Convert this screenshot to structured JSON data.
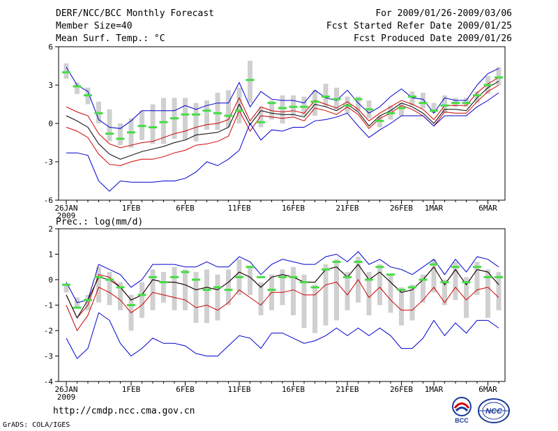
{
  "header": {
    "title": "DERF/NCC/BCC Monthly Forecast",
    "member_size": "Member Size=40",
    "variable": "Mean Surf. Temp.: °C",
    "period": "For 2009/01/26-2009/03/06",
    "started": "Fcst Started Refer Date 2009/01/25",
    "produced": "Fcst Produced Date 2009/01/26"
  },
  "footer": {
    "url": "http://cmdp.ncc.cma.gov.cn",
    "credit": "GrADS: COLA/IGES",
    "logo_bcc": "BCC",
    "logo_ncc": "NCC"
  },
  "colors": {
    "envelope": "#0000cc",
    "inner": "#cc0000",
    "mean": "#000000",
    "bar": "#d0d0d0",
    "marker": "#44dd44"
  },
  "chart_data": [
    {
      "type": "line",
      "title": "Mean Surf. Temp.: °C",
      "ylim": [
        -6,
        6
      ],
      "yticks": [
        -6,
        -3,
        0,
        3,
        6
      ],
      "x_tick_labels": [
        {
          "day": 0,
          "label": "26JAN"
        },
        {
          "day": 6,
          "label": "1FEB"
        },
        {
          "day": 11,
          "label": "6FEB"
        },
        {
          "day": 16,
          "label": "11FEB"
        },
        {
          "day": 21,
          "label": "16FEB"
        },
        {
          "day": 26,
          "label": "21FEB"
        },
        {
          "day": 31,
          "label": "26FEB"
        },
        {
          "day": 34,
          "label": "1MAR"
        },
        {
          "day": 39,
          "label": "6MAR"
        }
      ],
      "x_year": "2009",
      "series": [
        {
          "name": "max",
          "color": "#0000cc",
          "values": [
            4.4,
            3.0,
            2.5,
            0.3,
            -0.3,
            -0.4,
            0.2,
            1.0,
            1.0,
            1.0,
            1.0,
            1.4,
            1.1,
            1.4,
            1.6,
            1.6,
            3.2,
            1.3,
            2.5,
            1.9,
            1.8,
            1.8,
            1.6,
            2.6,
            2.0,
            1.8,
            2.6,
            1.6,
            0.8,
            1.3,
            2.1,
            2.7,
            2.0,
            1.9,
            0.8,
            2.0,
            1.8,
            1.8,
            3.0,
            3.9,
            4.3
          ]
        },
        {
          "name": "upper",
          "color": "#cc0000",
          "values": [
            1.3,
            0.9,
            0.6,
            -0.8,
            -1.6,
            -1.9,
            -1.7,
            -1.5,
            -1.4,
            -1.1,
            -0.8,
            -0.6,
            -0.3,
            -0.1,
            0.0,
            0.3,
            2.0,
            0.2,
            1.3,
            1.0,
            0.9,
            1.0,
            0.8,
            1.8,
            1.5,
            1.2,
            1.7,
            1.1,
            0.2,
            0.8,
            1.3,
            1.8,
            1.5,
            1.1,
            0.3,
            1.4,
            1.4,
            1.4,
            2.4,
            3.1,
            3.6
          ]
        },
        {
          "name": "mean",
          "color": "#000000",
          "values": [
            0.6,
            0.2,
            -0.3,
            -1.6,
            -2.4,
            -2.8,
            -2.5,
            -2.2,
            -2.0,
            -1.8,
            -1.5,
            -1.3,
            -0.9,
            -0.8,
            -0.7,
            -0.3,
            1.5,
            -0.1,
            1.0,
            0.8,
            0.7,
            0.7,
            0.5,
            1.5,
            1.3,
            1.0,
            1.5,
            0.9,
            -0.2,
            0.6,
            1.0,
            1.6,
            1.3,
            0.8,
            0.0,
            1.1,
            1.1,
            1.0,
            2.0,
            2.8,
            3.3
          ]
        },
        {
          "name": "lower",
          "color": "#cc0000",
          "values": [
            -0.3,
            -0.6,
            -1.1,
            -2.4,
            -3.2,
            -3.3,
            -3.0,
            -2.8,
            -2.8,
            -2.6,
            -2.3,
            -2.1,
            -1.7,
            -1.6,
            -1.4,
            -1.0,
            1.0,
            -0.6,
            0.6,
            0.5,
            0.4,
            0.5,
            0.2,
            1.2,
            1.0,
            0.7,
            1.3,
            0.7,
            -0.4,
            0.4,
            0.8,
            1.4,
            1.1,
            0.6,
            -0.2,
            0.9,
            0.8,
            0.8,
            1.7,
            2.5,
            3.0
          ]
        },
        {
          "name": "min",
          "color": "#0000cc",
          "values": [
            -2.3,
            -2.3,
            -2.5,
            -4.5,
            -5.3,
            -4.5,
            -4.6,
            -4.6,
            -4.6,
            -4.5,
            -4.5,
            -4.3,
            -3.8,
            -3.0,
            -3.3,
            -2.8,
            -2.1,
            0.0,
            -1.3,
            -0.5,
            -0.6,
            -0.3,
            -0.3,
            0.2,
            0.3,
            0.5,
            0.8,
            -0.2,
            -1.1,
            -0.5,
            0.0,
            0.6,
            0.6,
            0.6,
            -0.2,
            0.6,
            0.6,
            0.6,
            1.3,
            1.8,
            2.4
          ]
        }
      ],
      "bars": [
        [
          3.5,
          4.7
        ],
        [
          2.3,
          3.2
        ],
        [
          1.5,
          2.8
        ],
        [
          0.0,
          1.7
        ],
        [
          -1.4,
          1.1
        ],
        [
          -1.7,
          0.0
        ],
        [
          -1.9,
          0.4
        ],
        [
          -1.3,
          1.0
        ],
        [
          -1.6,
          1.5
        ],
        [
          -1.6,
          2.0
        ],
        [
          -1.2,
          2.0
        ],
        [
          -1.3,
          2.0
        ],
        [
          -1.4,
          1.6
        ],
        [
          -0.5,
          1.8
        ],
        [
          -0.5,
          2.4
        ],
        [
          -0.3,
          2.6
        ],
        [
          0.0,
          2.8
        ],
        [
          1.6,
          4.9
        ],
        [
          -0.3,
          1.3
        ],
        [
          0.3,
          1.8
        ],
        [
          0.0,
          2.2
        ],
        [
          0.6,
          2.2
        ],
        [
          0.6,
          2.1
        ],
        [
          0.6,
          2.6
        ],
        [
          1.3,
          3.1
        ],
        [
          1.1,
          2.8
        ],
        [
          0.8,
          2.1
        ],
        [
          1.0,
          2.1
        ],
        [
          0.4,
          1.8
        ],
        [
          -0.3,
          0.6
        ],
        [
          0.3,
          1.4
        ],
        [
          0.6,
          1.6
        ],
        [
          1.4,
          2.5
        ],
        [
          1.2,
          2.4
        ],
        [
          0.8,
          1.6
        ],
        [
          0.8,
          2.2
        ],
        [
          1.3,
          2.0
        ],
        [
          1.3,
          2.0
        ],
        [
          1.6,
          2.5
        ],
        [
          2.3,
          3.7
        ],
        [
          3.0,
          4.4
        ]
      ],
      "markers": [
        4.0,
        2.9,
        2.2,
        0.8,
        -0.8,
        -1.2,
        -0.7,
        -0.2,
        -0.3,
        0.1,
        0.4,
        0.7,
        0.7,
        1.0,
        0.8,
        0.6,
        1.0,
        3.4,
        0.1,
        1.6,
        1.2,
        1.3,
        1.3,
        1.7,
        2.1,
        1.9,
        1.4,
        1.9,
        1.1,
        0.2,
        0.8,
        1.2,
        2.1,
        1.6,
        1.0,
        1.4,
        1.6,
        1.6,
        2.2,
        3.0,
        3.6
      ]
    },
    {
      "type": "line",
      "title": "Prec.: log(mm/d)",
      "ylim": [
        -4,
        2
      ],
      "yticks": [
        -4,
        -3,
        -2,
        -1,
        0,
        1,
        2
      ],
      "x_tick_labels": [
        {
          "day": 0,
          "label": "26JAN"
        },
        {
          "day": 6,
          "label": "1FEB"
        },
        {
          "day": 11,
          "label": "6FEB"
        },
        {
          "day": 16,
          "label": "11FEB"
        },
        {
          "day": 21,
          "label": "16FEB"
        },
        {
          "day": 26,
          "label": "21FEB"
        },
        {
          "day": 31,
          "label": "26FEB"
        },
        {
          "day": 34,
          "label": "1MAR"
        },
        {
          "day": 39,
          "label": "6MAR"
        }
      ],
      "x_year": "2009",
      "series": [
        {
          "name": "max",
          "color": "#0000cc",
          "values": [
            -0.1,
            -0.9,
            -0.8,
            0.6,
            0.4,
            0.2,
            -0.3,
            0.0,
            0.6,
            0.6,
            0.6,
            0.5,
            0.5,
            0.7,
            0.5,
            0.5,
            0.9,
            0.7,
            0.2,
            0.6,
            0.8,
            0.7,
            0.6,
            0.6,
            0.9,
            1.0,
            0.7,
            1.1,
            0.6,
            0.8,
            0.5,
            0.4,
            0.2,
            0.5,
            0.8,
            0.2,
            0.8,
            0.3,
            0.9,
            0.8,
            0.5
          ]
        },
        {
          "name": "upper",
          "color": "#cc0000",
          "values": [
            -0.6,
            -1.5,
            -1.0,
            0.2,
            0.1,
            -0.3,
            -0.8,
            -0.6,
            0.0,
            -0.1,
            -0.1,
            -0.2,
            -0.4,
            -0.3,
            -0.4,
            -0.1,
            0.3,
            0.1,
            -0.3,
            0.1,
            0.2,
            0.1,
            -0.1,
            -0.1,
            0.4,
            0.5,
            0.1,
            0.6,
            0.0,
            0.3,
            -0.1,
            -0.5,
            -0.4,
            0.0,
            0.5,
            -0.2,
            0.4,
            -0.2,
            0.4,
            0.3,
            -0.2
          ]
        },
        {
          "name": "mean",
          "color": "#000000",
          "values": [
            -0.6,
            -1.5,
            -0.8,
            0.1,
            0.0,
            -0.3,
            -0.8,
            -0.6,
            0.0,
            -0.1,
            -0.1,
            -0.2,
            -0.4,
            -0.3,
            -0.4,
            -0.1,
            0.3,
            0.1,
            -0.3,
            0.1,
            0.2,
            0.1,
            -0.1,
            -0.1,
            0.4,
            0.5,
            0.1,
            0.6,
            0.0,
            0.3,
            -0.1,
            -0.5,
            -0.4,
            0.0,
            0.5,
            -0.2,
            0.4,
            -0.2,
            0.4,
            0.3,
            -0.2
          ]
        },
        {
          "name": "lower",
          "color": "#cc0000",
          "values": [
            -1.0,
            -2.0,
            -1.4,
            -0.3,
            -0.5,
            -0.8,
            -1.3,
            -1.0,
            -0.5,
            -0.6,
            -0.7,
            -0.8,
            -1.1,
            -1.0,
            -1.2,
            -0.9,
            -0.4,
            -0.7,
            -1.0,
            -0.5,
            -0.5,
            -0.4,
            -0.6,
            -0.6,
            -0.2,
            -0.1,
            -0.6,
            0.0,
            -0.7,
            -0.3,
            -0.8,
            -1.2,
            -1.2,
            -0.8,
            -0.3,
            -0.9,
            -0.3,
            -0.8,
            -0.4,
            -0.3,
            -0.7
          ]
        },
        {
          "name": "min",
          "color": "#0000cc",
          "values": [
            -2.3,
            -3.1,
            -2.7,
            -1.3,
            -1.6,
            -2.5,
            -3.0,
            -2.7,
            -2.3,
            -2.5,
            -2.5,
            -2.6,
            -2.9,
            -3.0,
            -3.0,
            -2.6,
            -2.2,
            -2.3,
            -2.7,
            -2.1,
            -2.1,
            -2.3,
            -2.5,
            -2.4,
            -2.2,
            -1.9,
            -2.2,
            -1.9,
            -2.2,
            -1.9,
            -2.2,
            -2.7,
            -2.7,
            -2.3,
            -1.6,
            -2.2,
            -1.7,
            -2.1,
            -1.6,
            -1.6,
            -1.9
          ]
        }
      ],
      "bars": [
        [
          -0.2,
          -0.5
        ],
        [
          -1.1,
          -0.7
        ],
        [
          -1.2,
          -0.6
        ],
        [
          -0.9,
          0.5
        ],
        [
          -1.0,
          0.3
        ],
        [
          -1.2,
          -0.1
        ],
        [
          -2.0,
          -0.6
        ],
        [
          -1.5,
          -0.1
        ],
        [
          -1.2,
          0.4
        ],
        [
          -0.9,
          0.3
        ],
        [
          -1.2,
          0.5
        ],
        [
          -1.2,
          0.4
        ],
        [
          -1.7,
          0.3
        ],
        [
          -1.7,
          0.4
        ],
        [
          -1.6,
          0.2
        ],
        [
          -1.0,
          0.4
        ],
        [
          -0.6,
          0.8
        ],
        [
          -0.6,
          0.5
        ],
        [
          -1.4,
          -0.1
        ],
        [
          -1.2,
          0.2
        ],
        [
          -1.0,
          0.4
        ],
        [
          -1.4,
          0.5
        ],
        [
          -1.9,
          0.2
        ],
        [
          -2.1,
          -0.2
        ],
        [
          -1.8,
          0.6
        ],
        [
          -1.6,
          0.8
        ],
        [
          -1.2,
          0.3
        ],
        [
          -0.9,
          0.9
        ],
        [
          -1.4,
          0.3
        ],
        [
          -1.0,
          0.6
        ],
        [
          -1.3,
          0.2
        ],
        [
          -1.8,
          -0.3
        ],
        [
          -1.6,
          -0.2
        ],
        [
          -0.9,
          0.2
        ],
        [
          -0.5,
          0.8
        ],
        [
          -1.0,
          0.0
        ],
        [
          -0.8,
          0.7
        ],
        [
          -1.5,
          0.1
        ],
        [
          -0.6,
          0.7
        ],
        [
          -1.5,
          0.4
        ],
        [
          -1.2,
          0.3
        ]
      ],
      "markers": [
        -0.2,
        -1.1,
        -0.8,
        0.1,
        0.0,
        -0.3,
        -1.0,
        -0.6,
        0.1,
        -0.1,
        0.1,
        0.3,
        0.0,
        -0.4,
        -0.3,
        -0.4,
        0.1,
        0.5,
        0.1,
        -0.4,
        0.1,
        0.1,
        -0.1,
        -0.3,
        0.4,
        0.7,
        0.1,
        0.7,
        0.0,
        0.5,
        0.2,
        -0.4,
        -0.3,
        0.0,
        0.6,
        -0.1,
        0.5,
        -0.1,
        0.5,
        0.1,
        0.1
      ]
    }
  ]
}
